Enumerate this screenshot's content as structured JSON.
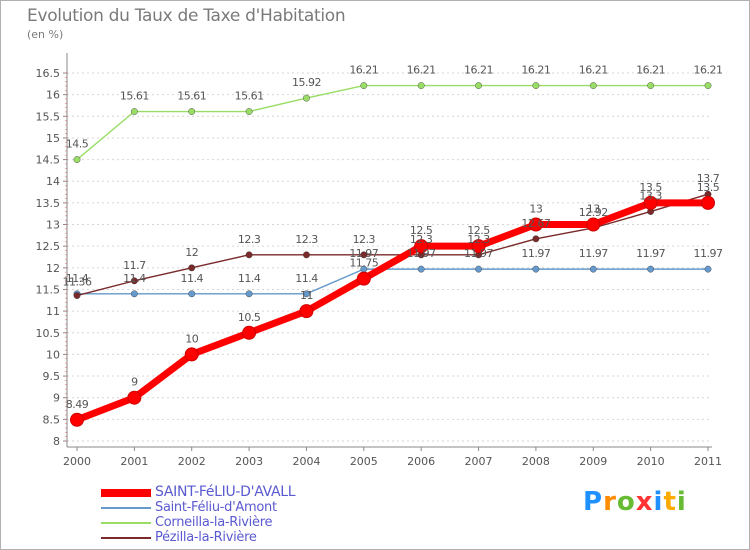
{
  "header": {
    "title": "Evolution du Taux de Taxe d'Habitation",
    "subtitle": "(en %)"
  },
  "logo": {
    "text": "Proxiti",
    "letters": [
      {
        "ch": "P",
        "color": "#1e90ff"
      },
      {
        "ch": "r",
        "color": "#ff8c00"
      },
      {
        "ch": "o",
        "color": "#66bb33"
      },
      {
        "ch": "x",
        "color": "#ff3333"
      },
      {
        "ch": "i",
        "color": "#1e90ff"
      },
      {
        "ch": "t",
        "color": "#ffaa00"
      },
      {
        "ch": "i",
        "color": "#66bb33"
      }
    ]
  },
  "chart_data": {
    "type": "line",
    "title": "Evolution du Taux de Taxe d'Habitation",
    "ylabel": "(en %)",
    "xlabel": "",
    "x": [
      "2000",
      "2001",
      "2002",
      "2003",
      "2004",
      "2005",
      "2006",
      "2007",
      "2008",
      "2009",
      "2010",
      "2011"
    ],
    "ylim": [
      8,
      16.5
    ],
    "yticks": [
      "8",
      "8.5",
      "9",
      "9.5",
      "10",
      "10.5",
      "11",
      "11.5",
      "12",
      "12.5",
      "13",
      "13.5",
      "14",
      "14.5",
      "15",
      "15.5",
      "16",
      "16.5"
    ],
    "grid": "horizontal",
    "series": [
      {
        "name": "Corneilla-la-Rivière",
        "color": "#99dd66",
        "values": [
          14.5,
          15.61,
          15.61,
          15.61,
          15.92,
          16.21,
          16.21,
          16.21,
          16.21,
          16.21,
          16.21,
          16.21
        ],
        "labels": [
          "14.5",
          "15.61",
          "15.61",
          "15.61",
          "15.92",
          "16.21",
          "16.21",
          "16.21",
          "16.21",
          "16.21",
          "16.21",
          "16.21"
        ]
      },
      {
        "name": "Saint-Féliu-d'Amont",
        "color": "#6699cc",
        "values": [
          11.4,
          11.4,
          11.4,
          11.4,
          11.4,
          11.97,
          11.97,
          11.97,
          11.97,
          11.97,
          11.97,
          11.97
        ],
        "labels": [
          "11.4",
          "11.4",
          "11.4",
          "11.4",
          "11.4",
          "11.97",
          "11.97",
          "11.97",
          "11.97",
          "11.97",
          "11.97",
          "11.97"
        ]
      },
      {
        "name": "Pézilla-la-Rivière",
        "color": "#7a2a2a",
        "values": [
          11.36,
          11.7,
          12,
          12.3,
          12.3,
          12.3,
          12.3,
          12.3,
          12.67,
          12.92,
          13.3,
          13.7
        ],
        "labels": [
          "11.36",
          "11.7",
          "12",
          "12.3",
          "12.3",
          "12.3",
          "12.3",
          "12.3",
          "12.67",
          "12.92",
          "13.3",
          "13.7"
        ]
      },
      {
        "name": "SAINT-FéLIU-D'AVALL",
        "color": "#ff0000",
        "values": [
          8.49,
          9,
          10,
          10.5,
          11,
          11.75,
          12.5,
          12.5,
          13,
          13,
          13.5,
          13.5
        ],
        "labels": [
          "8.49",
          "9",
          "10",
          "10.5",
          "11",
          "11.75",
          "12.5",
          "12.5",
          "13",
          "13",
          "13.5",
          "13.5"
        ]
      }
    ],
    "legend": [
      {
        "name": "SAINT-FéLIU-D'AVALL",
        "color": "#ff0000",
        "thick": true
      },
      {
        "name": "Saint-Féliu-d'Amont",
        "color": "#6699cc",
        "thick": false
      },
      {
        "name": "Corneilla-la-Rivière",
        "color": "#99dd66",
        "thick": false
      },
      {
        "name": "Pézilla-la-Rivière",
        "color": "#7a2a2a",
        "thick": false
      }
    ]
  }
}
